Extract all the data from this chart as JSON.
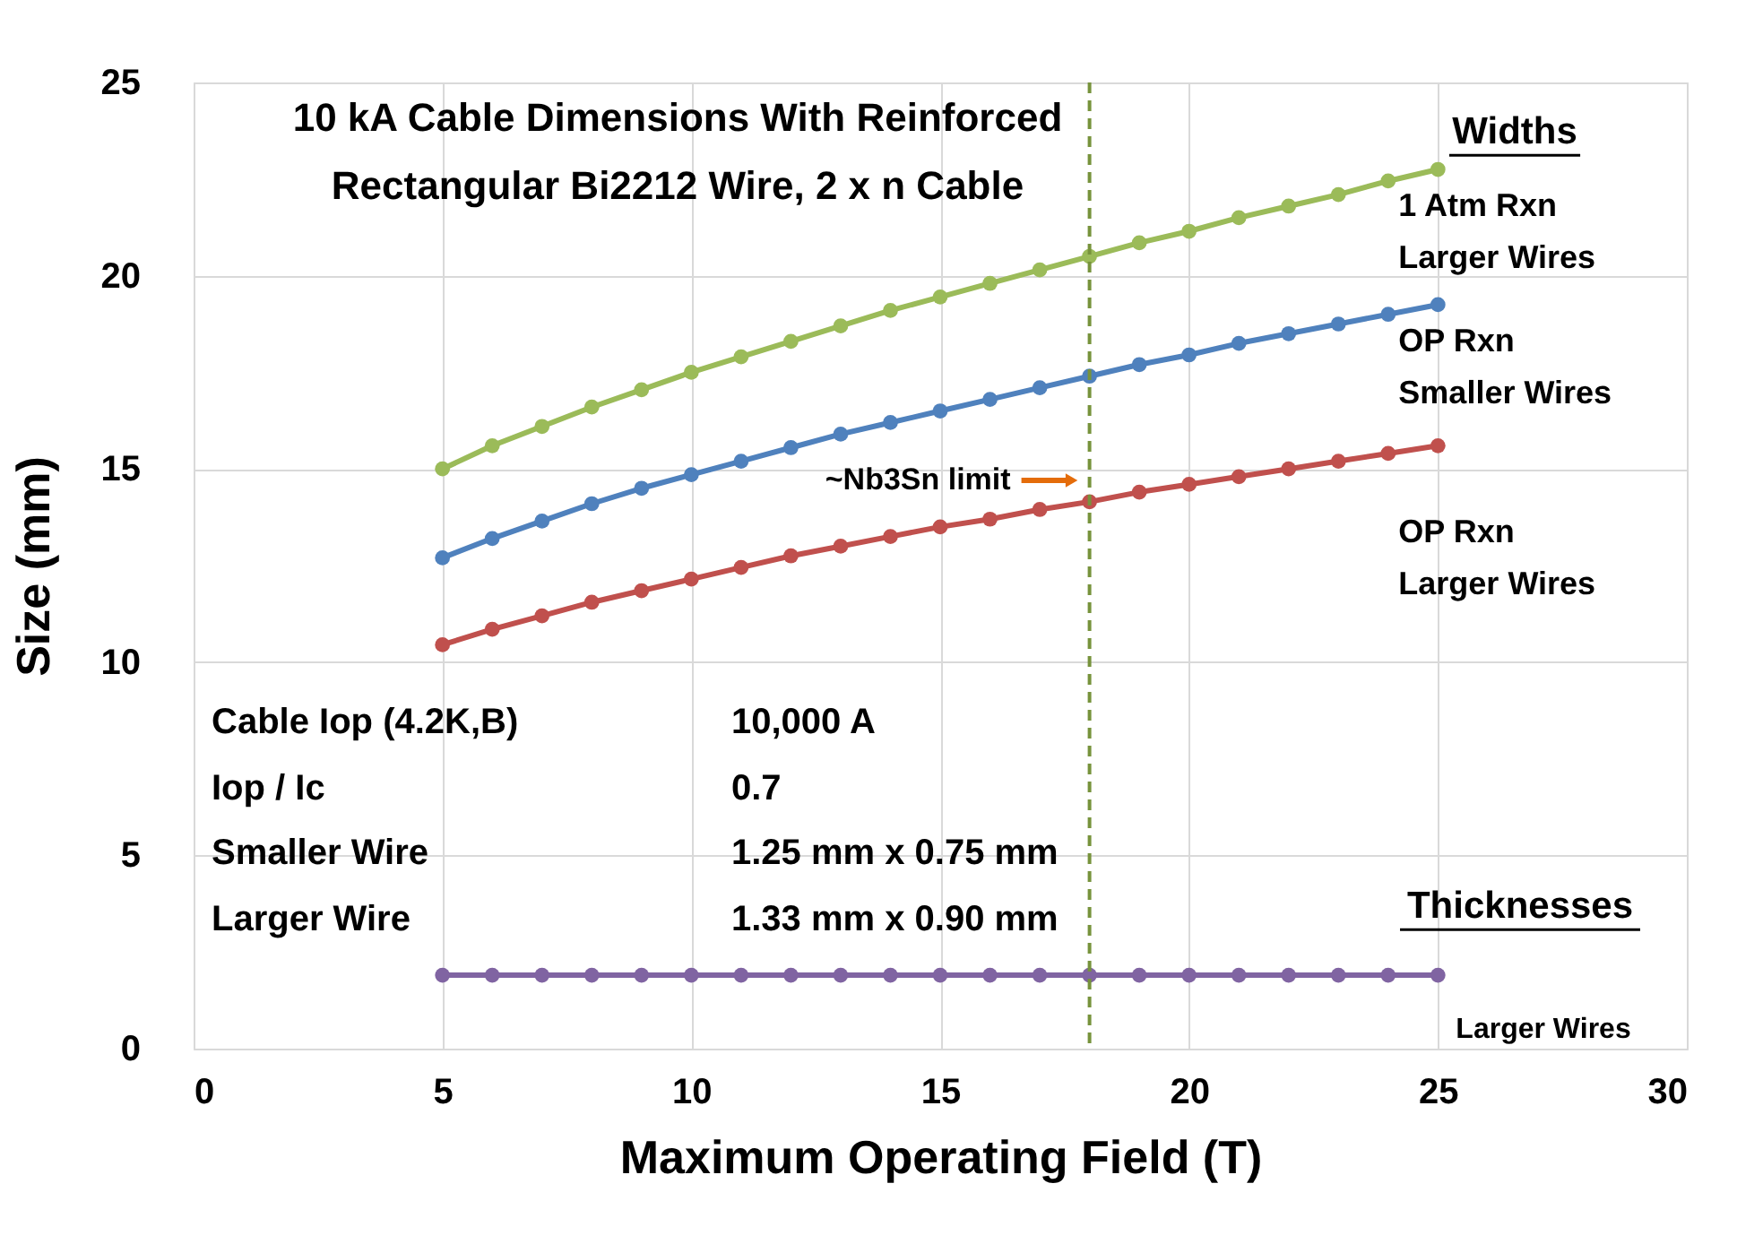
{
  "chart_data": {
    "type": "line",
    "title": "10 kA Cable Dimensions With Reinforced\nRectangular Bi2212 Wire, 2 x n Cable",
    "xlabel": "Maximum Operating Field (T)",
    "ylabel": "Size (mm)",
    "x": [
      5,
      6,
      7,
      8,
      9,
      10,
      11,
      12,
      13,
      14,
      15,
      16,
      17,
      18,
      19,
      20,
      21,
      22,
      23,
      24,
      25
    ],
    "series": [
      {
        "name": "1 Atm Rxn\nLarger Wires",
        "color": "#9bbb59",
        "values": [
          15.0,
          15.6,
          16.1,
          16.6,
          17.05,
          17.5,
          17.9,
          18.3,
          18.7,
          19.1,
          19.45,
          19.8,
          20.15,
          20.5,
          20.85,
          21.15,
          21.5,
          21.8,
          22.1,
          22.45,
          22.75
        ]
      },
      {
        "name": "OP Rxn\nSmaller Wires",
        "color": "#4f81bd",
        "values": [
          12.7,
          13.2,
          13.65,
          14.1,
          14.5,
          14.85,
          15.2,
          15.55,
          15.9,
          16.2,
          16.5,
          16.8,
          17.1,
          17.4,
          17.7,
          17.95,
          18.25,
          18.5,
          18.75,
          19.0,
          19.25
        ]
      },
      {
        "name": "OP Rxn\nLarger Wires",
        "color": "#c0504d",
        "values": [
          10.45,
          10.85,
          11.2,
          11.55,
          11.85,
          12.15,
          12.45,
          12.75,
          13.0,
          13.25,
          13.5,
          13.7,
          13.95,
          14.15,
          14.4,
          14.6,
          14.8,
          15.0,
          15.2,
          15.4,
          15.6
        ]
      },
      {
        "name": "Larger Wires",
        "color": "#8064a2",
        "values": [
          1.9,
          1.9,
          1.9,
          1.9,
          1.9,
          1.9,
          1.9,
          1.9,
          1.9,
          1.9,
          1.9,
          1.9,
          1.9,
          1.9,
          1.9,
          1.9,
          1.9,
          1.9,
          1.9,
          1.9,
          1.9
        ]
      }
    ],
    "xlim": [
      0,
      30
    ],
    "xticks": [
      0,
      5,
      10,
      15,
      20,
      25,
      30
    ],
    "ylim": [
      0,
      25
    ],
    "yticks": [
      0,
      5,
      10,
      15,
      20,
      25
    ],
    "ref_lines": [
      {
        "axis": "x",
        "value": 18,
        "label": "~Nb3Sn limit",
        "color": "#77933c",
        "line_style": "dashed"
      }
    ],
    "annotations": [
      "Widths",
      "Thicknesses",
      "Cable Iop (4.2K,B)",
      "10,000 A",
      "Iop / Ic",
      "0.7",
      "Smaller Wire",
      "1.25 mm x 0.75 mm",
      "Larger Wire",
      "1.33 mm x 0.90 mm"
    ],
    "grid": true,
    "legend": false,
    "marker": "circle",
    "line_style": "solid"
  }
}
